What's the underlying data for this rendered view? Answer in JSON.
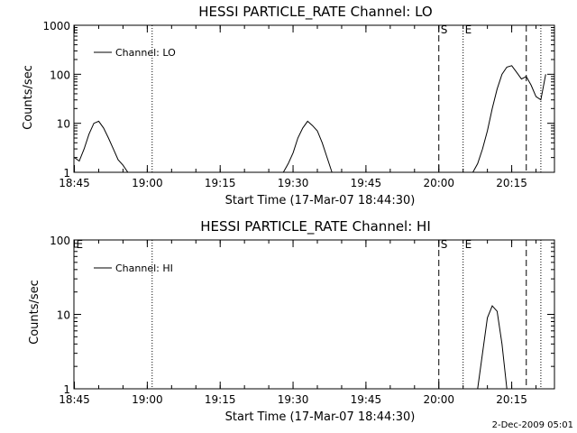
{
  "stamp": "2-Dec-2009 05:01",
  "chart_data": [
    {
      "type": "line",
      "title": "HESSI PARTICLE_RATE Channel: LO",
      "xlabel": "Start Time (17-Mar-07 18:44:30)",
      "ylabel": "Counts/sec",
      "yscale": "log",
      "ylim": [
        1,
        1000
      ],
      "xlim": [
        "18:45",
        "20:23"
      ],
      "x_ticks": [
        "18:45",
        "19:00",
        "19:15",
        "19:30",
        "19:45",
        "20:00",
        "20:15"
      ],
      "y_ticks": [
        "1",
        "10",
        "100",
        "1000"
      ],
      "legend": {
        "position": "top-left",
        "entries": [
          "Channel: LO"
        ]
      },
      "markers": [
        {
          "time": "19:01",
          "style": "dotted",
          "label": ""
        },
        {
          "time": "20:00",
          "style": "dashed",
          "label": "S"
        },
        {
          "time": "20:05",
          "style": "dotted",
          "label": "E"
        },
        {
          "time": "20:18",
          "style": "dashed",
          "label": ""
        },
        {
          "time": "20:21",
          "style": "dotted",
          "label": ""
        }
      ],
      "series": [
        {
          "name": "Channel: LO",
          "segments": [
            {
              "x": [
                "18:45",
                "18:46",
                "18:47",
                "18:48",
                "18:49",
                "18:50",
                "18:51",
                "18:52",
                "18:53",
                "18:54",
                "18:55",
                "18:56"
              ],
              "y": [
                2,
                1.7,
                3,
                6,
                10,
                11,
                8,
                5,
                3,
                1.8,
                1.4,
                1
              ]
            },
            {
              "x": [
                "19:28",
                "19:29",
                "19:30",
                "19:31",
                "19:32",
                "19:33",
                "19:34",
                "19:35",
                "19:36",
                "19:37",
                "19:38"
              ],
              "y": [
                1,
                1.5,
                2.5,
                5,
                8,
                11,
                9,
                7,
                4,
                2,
                1
              ]
            },
            {
              "x": [
                "20:07",
                "20:08",
                "20:09",
                "20:10",
                "20:11",
                "20:12",
                "20:13",
                "20:14",
                "20:15",
                "20:16",
                "20:17",
                "20:18",
                "20:19",
                "20:20",
                "20:21",
                "20:22"
              ],
              "y": [
                1,
                1.5,
                3,
                7,
                20,
                50,
                100,
                140,
                150,
                110,
                80,
                90,
                60,
                35,
                30,
                100
              ]
            }
          ]
        }
      ]
    },
    {
      "type": "line",
      "title": "HESSI PARTICLE_RATE Channel: HI",
      "xlabel": "Start Time (17-Mar-07 18:44:30)",
      "ylabel": "Counts/sec",
      "yscale": "log",
      "ylim": [
        1,
        100
      ],
      "xlim": [
        "18:45",
        "20:23"
      ],
      "x_ticks": [
        "18:45",
        "19:00",
        "19:15",
        "19:30",
        "19:45",
        "20:00",
        "20:15"
      ],
      "y_ticks": [
        "1",
        "10",
        "100"
      ],
      "legend": {
        "position": "top-left",
        "entries": [
          "Channel: HI"
        ]
      },
      "markers": [
        {
          "time": "18:45",
          "style": "none",
          "label": "E"
        },
        {
          "time": "19:01",
          "style": "dotted",
          "label": ""
        },
        {
          "time": "20:00",
          "style": "dashed",
          "label": "S"
        },
        {
          "time": "20:05",
          "style": "dotted",
          "label": "E"
        },
        {
          "time": "20:18",
          "style": "dashed",
          "label": ""
        },
        {
          "time": "20:21",
          "style": "dotted",
          "label": ""
        }
      ],
      "series": [
        {
          "name": "Channel: HI",
          "segments": [
            {
              "x": [
                "20:08",
                "20:09",
                "20:10",
                "20:11",
                "20:12",
                "20:13",
                "20:14"
              ],
              "y": [
                1,
                3,
                9,
                13,
                11,
                4,
                1
              ]
            }
          ]
        }
      ]
    }
  ]
}
